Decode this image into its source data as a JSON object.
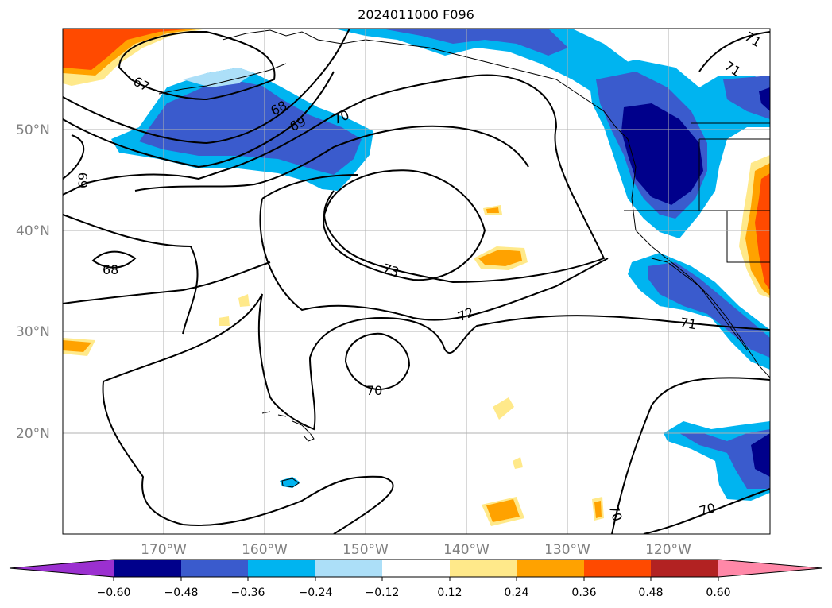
{
  "title": "2024011000 F096",
  "map": {
    "lat_labels": [
      "50°N",
      "40°N",
      "30°N",
      "20°N"
    ],
    "lon_labels": [
      "170°W",
      "160°W",
      "150°W",
      "140°W",
      "130°W",
      "120°W"
    ],
    "contour_labels": [
      "67",
      "68",
      "69",
      "70",
      "71",
      "72",
      "73",
      "68",
      "69",
      "70",
      "70",
      "70",
      "71",
      "71"
    ],
    "grid": true
  },
  "colorbar": {
    "ticks": [
      "−0.60",
      "−0.48",
      "−0.36",
      "−0.24",
      "−0.12",
      "0.12",
      "0.24",
      "0.36",
      "0.48",
      "0.60"
    ],
    "colors": [
      "#9b30d0",
      "#00008b",
      "#3a5bcd",
      "#00b4f0",
      "#acdff8",
      "#ffffff",
      "#ffe98a",
      "#ffa200",
      "#ff4a00",
      "#b22222",
      "#ff88a8"
    ]
  },
  "chart_data": {
    "type": "heatmap",
    "title": "2024011000 F096",
    "extent_lon": [
      -180,
      -110
    ],
    "extent_lat": [
      10,
      60
    ],
    "contour_levels": [
      67,
      68,
      69,
      70,
      71,
      72,
      73
    ],
    "shading_levels": [
      -0.6,
      -0.48,
      -0.36,
      -0.24,
      -0.12,
      0.12,
      0.24,
      0.36,
      0.48,
      0.6
    ]
  }
}
